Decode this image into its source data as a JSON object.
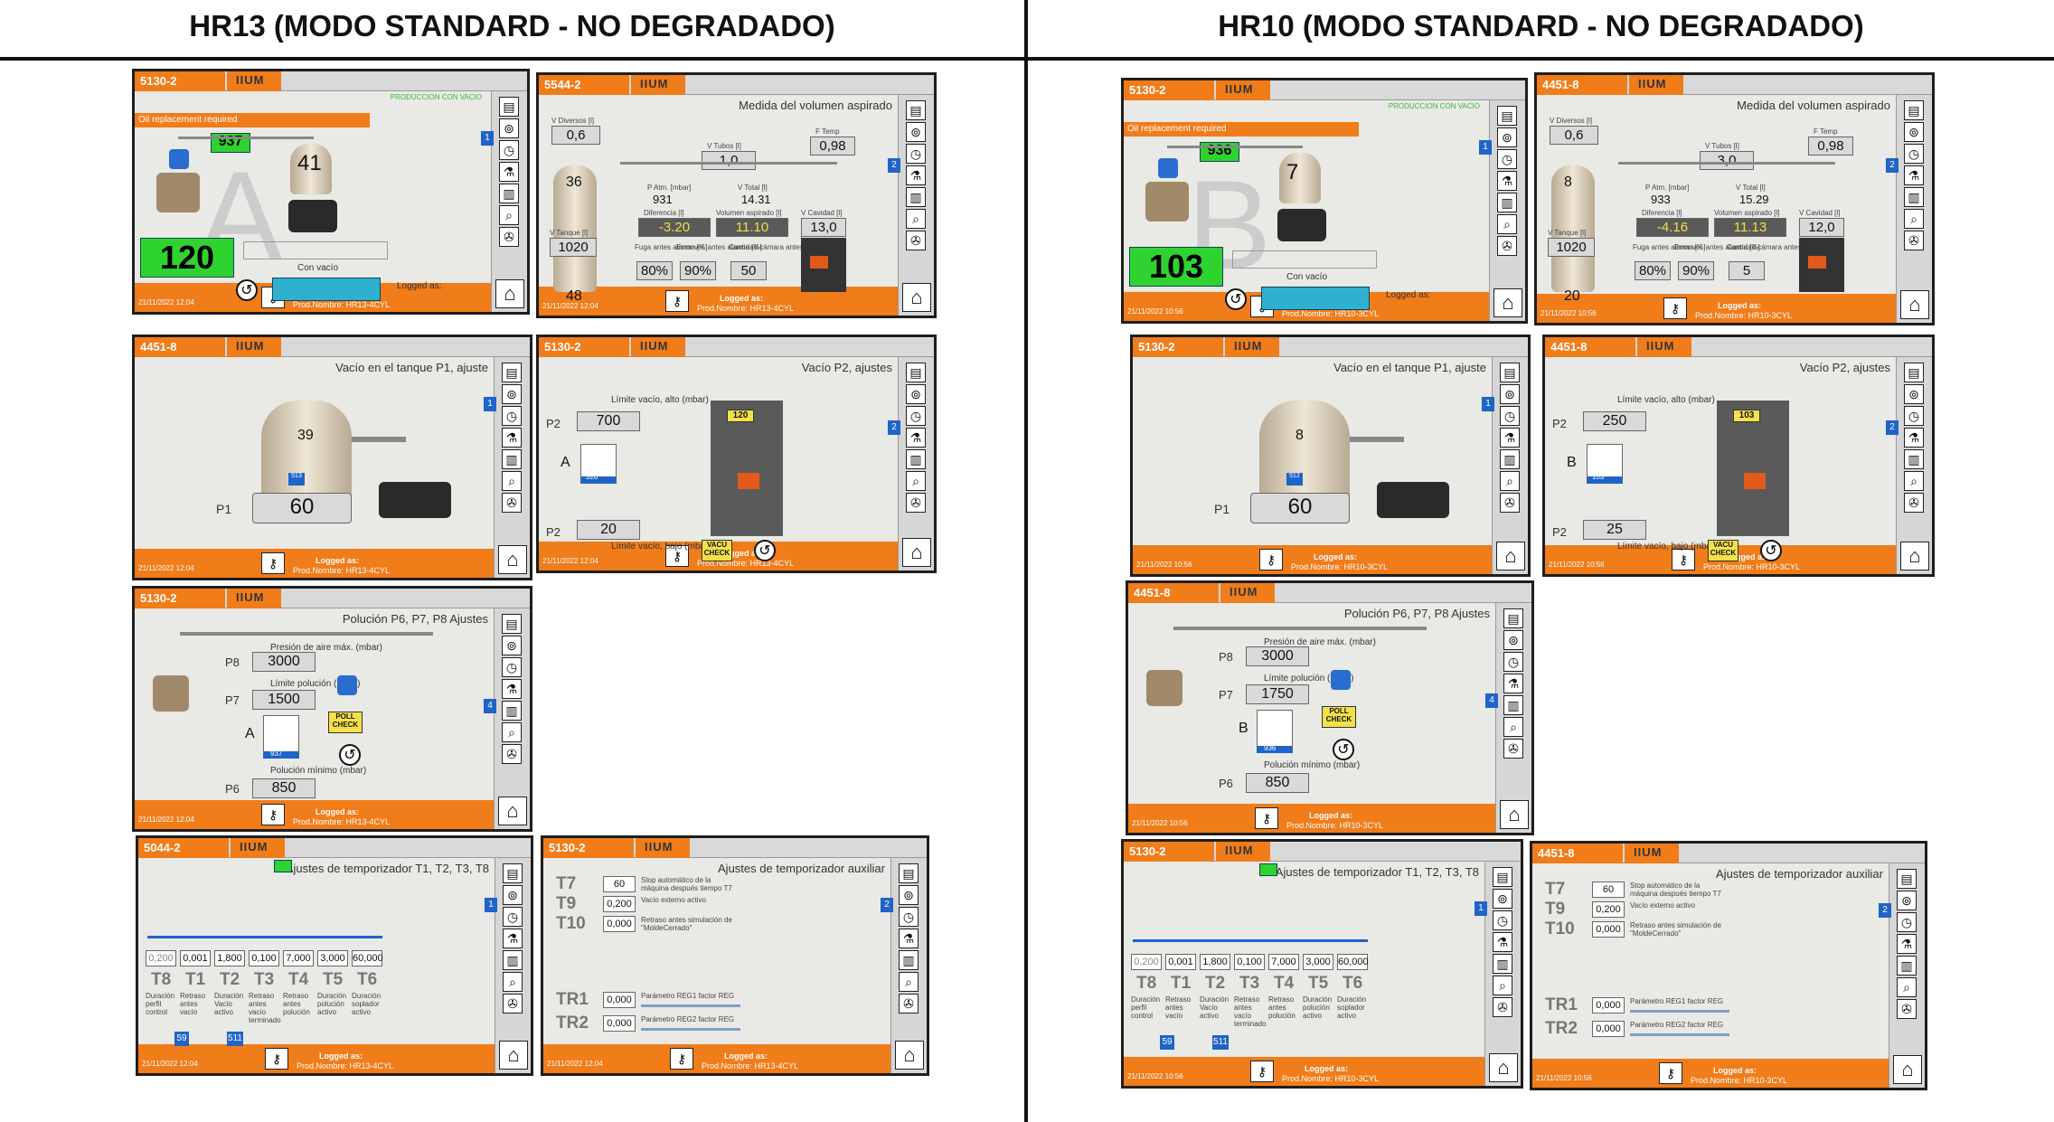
{
  "headers": {
    "left": "HR13 (MODO STANDARD - NO DEGRADADO)",
    "right": "HR10 (MODO STANDARD - NO DEGRADADO)"
  },
  "common": {
    "brand": "IIUM",
    "logged_as": "Logged as:",
    "oil_replacement": "Oil replacement required",
    "production_con_vacio": "PRODUCCION CON VACIO",
    "con_vacio": "Con vacío",
    "vacio_p1_title": "Vacío en el tanque P1, ajuste",
    "vacio_p2_title": "Vacío P2, ajustes",
    "polucion_title": "Polución P6, P7, P8 Ajustes",
    "temp_title": "Ajustes de temporizador T1, T2, T3, T8",
    "aux_title": "Ajustes de temporizador auxiliar",
    "medida_title": "Medida del volumen aspirado",
    "limite_alto": "Límite vacío, alto (mbar)",
    "limite_bajo": "Límite vacío, bajo (mbar)",
    "presion_aire": "Presión de aire máx. (mbar)",
    "limite_polucion": "Límite polución (mbar)",
    "polucion_minimo": "Polución mínimo (mbar)",
    "vacu_check": "VACU CHECK",
    "poll_check": "POLL CHECK",
    "p1": "P1",
    "p2": "P2",
    "p6": "P6",
    "p7": "P7",
    "p8": "P8",
    "v_diversos": "V Diversos [l]",
    "v_tubos": "V Tubos [l]",
    "f_temp": "F Temp",
    "p_atm": "P Atm. [mbar]",
    "v_total": "V Total [l]",
    "diferencia": "Diferencia [l]",
    "vol_aspirado": "Volumen aspirado [l]",
    "v_cavidad": "V Cavidad [l]",
    "v_tanque": "V Tanque [l]",
    "fuga": "Fuga antes alarma [%]",
    "error_vol": "Error vol. antes alarma [%]",
    "cant_camaras": "Cantidad cámara antes alarma",
    "t_labels": [
      "T8",
      "T1",
      "T2",
      "T3",
      "T4",
      "T5",
      "T6"
    ],
    "t_desc": [
      "Duración perfil control",
      "Retraso antes vacío",
      "Duración Vacío activo",
      "Retraso antes vacío terminado",
      "Retraso antes polución",
      "Duración polución activo",
      "Duración soplador activo"
    ],
    "aux_labels": [
      "T7",
      "T9",
      "T10",
      "TR1",
      "TR2"
    ],
    "aux_desc": [
      "Stop automático de la máquina después tiempo T7",
      "Vacío externo activo",
      "Retraso antes simulación de \"MoldeCerrado\"",
      "Parámetro REG1 factor REG",
      "Parámetro REG2 factor REG"
    ]
  },
  "hr13": {
    "prod": "Prod.Nombre: HR13-4CYL",
    "date": "21/11/2022 12:04",
    "s1": {
      "id": "5130-2",
      "tank_top": "937",
      "tank_small": "41",
      "bottom": "120",
      "letter": "A"
    },
    "s2": {
      "id": "5544-2",
      "v_div": "0,6",
      "v_tub": "1,0",
      "f_temp": "0,98",
      "p_tank": "36",
      "p_atm": "931",
      "v_total": "14.31",
      "diferencia": "-3.20",
      "vol_asp": "11.10",
      "v_cav": "13,0",
      "v_tank": "1020",
      "tank2": "48",
      "fuga": "80%",
      "error": "90%",
      "cant": "50"
    },
    "s3": {
      "id": "4451-8",
      "tank_val": "39",
      "p1": "60",
      "bar": "513"
    },
    "s4": {
      "id": "5130-2",
      "alto": "700",
      "bajo": "20",
      "letter": "A",
      "mold": "120",
      "gauge": "320"
    },
    "s5": {
      "id": "5130-2",
      "p8": "3000",
      "p7": "1500",
      "p6": "850",
      "letter": "A",
      "gauge": "937"
    },
    "s6": {
      "id": "5044-2",
      "vals": [
        "0,200",
        "0,001",
        "1,800",
        "0,100",
        "7,000",
        "3,000",
        "60,000"
      ],
      "badge1": "59",
      "badge2": "511"
    },
    "s7": {
      "id": "5130-2",
      "t7": "60",
      "t9": "0,200",
      "t10": "0,000",
      "tr1": "0,000",
      "tr2": "0,000"
    }
  },
  "hr10": {
    "prod": "Prod.Nombre: HR10-3CYL",
    "date": "21/11/2022 10:56",
    "s1": {
      "id": "5130-2",
      "tank_top": "936",
      "tank_small": "7",
      "bottom": "103",
      "letter": "B"
    },
    "s2": {
      "id": "4451-8",
      "v_div": "0,6",
      "v_tub": "3,0",
      "f_temp": "0,98",
      "p_tank": "8",
      "p_atm": "933",
      "v_total": "15.29",
      "diferencia": "-4.16",
      "vol_asp": "11.13",
      "v_cav": "12,0",
      "v_tank": "1020",
      "tank2": "20",
      "fuga": "80%",
      "error": "90%",
      "cant": "5"
    },
    "s3": {
      "id": "5130-2",
      "tank_val": "8",
      "p1": "60",
      "bar": "512"
    },
    "s4": {
      "id": "4451-8",
      "alto": "250",
      "bajo": "25",
      "letter": "B",
      "mold": "103",
      "gauge": "103"
    },
    "s5": {
      "id": "4451-8",
      "p8": "3000",
      "p7": "1750",
      "p6": "850",
      "letter": "B",
      "gauge": "936"
    },
    "s6": {
      "id": "5130-2",
      "vals": [
        "0,200",
        "0,001",
        "1,800",
        "0,100",
        "7,000",
        "3,000",
        "60,000"
      ],
      "badge1": "59",
      "badge2": "511"
    },
    "s7": {
      "id": "4451-8",
      "t7": "60",
      "t9": "0,200",
      "t10": "0,000",
      "tr1": "0,000",
      "tr2": "0,000"
    }
  }
}
